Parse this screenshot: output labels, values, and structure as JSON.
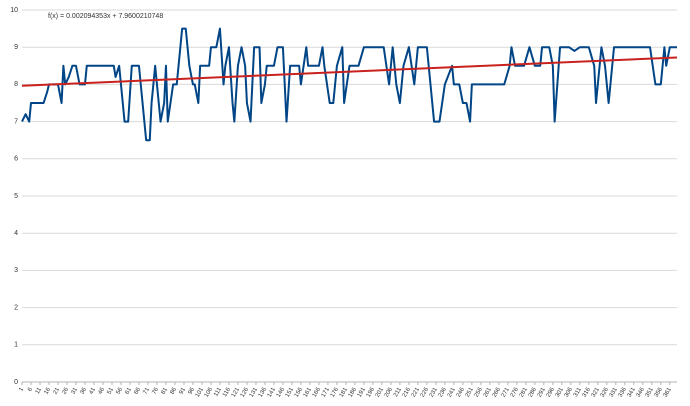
{
  "chart_data": {
    "type": "line",
    "annotation": "f(x) = 0.002094353x + 7.9600210748",
    "xlim": [
      1,
      365
    ],
    "ylim": [
      0,
      10
    ],
    "yticks": [
      0,
      1,
      2,
      3,
      4,
      5,
      6,
      7,
      8,
      9,
      10
    ],
    "xticks": [
      1,
      6,
      11,
      16,
      21,
      26,
      31,
      36,
      41,
      46,
      51,
      56,
      61,
      66,
      71,
      76,
      81,
      86,
      91,
      96,
      101,
      106,
      111,
      116,
      121,
      126,
      131,
      136,
      141,
      146,
      151,
      156,
      161,
      166,
      171,
      176,
      181,
      186,
      191,
      196,
      201,
      206,
      211,
      216,
      221,
      226,
      231,
      236,
      241,
      246,
      251,
      256,
      261,
      266,
      271,
      276,
      281,
      286,
      291,
      296,
      301,
      306,
      311,
      316,
      321,
      326,
      331,
      336,
      341,
      346,
      351,
      356,
      361
    ],
    "grid": true,
    "series": [
      {
        "color": "#004586",
        "x": [
          1,
          3,
          5,
          6,
          13,
          15,
          16,
          21,
          23,
          24,
          25,
          27,
          29,
          31,
          33,
          36,
          37,
          52,
          53,
          55,
          57,
          58,
          60,
          62,
          66,
          68,
          70,
          72,
          73,
          75,
          76,
          78,
          80,
          81,
          82,
          85,
          87,
          90,
          92,
          94,
          96,
          97,
          99,
          100,
          105,
          106,
          109,
          111,
          113,
          114,
          116,
          118,
          119,
          121,
          123,
          125,
          126,
          128,
          130,
          133,
          134,
          136,
          137,
          141,
          143,
          146,
          148,
          150,
          155,
          156,
          159,
          160,
          166,
          168,
          169,
          172,
          174,
          176,
          179,
          180,
          183,
          188,
          191,
          202,
          205,
          207,
          209,
          211,
          213,
          216,
          219,
          221,
          226,
          228,
          230,
          233,
          236,
          240,
          241,
          244,
          246,
          248,
          250,
          251,
          269,
          272,
          273,
          275,
          280,
          283,
          286,
          289,
          290,
          294,
          296,
          297,
          300,
          305,
          308,
          311,
          316,
          319,
          320,
          323,
          325,
          327,
          330,
          350,
          353,
          356,
          358,
          359,
          361,
          365
        ],
        "values": [
          7,
          7.2,
          7,
          7.5,
          7.5,
          7.8,
          8,
          8,
          7.5,
          8.5,
          8,
          8.2,
          8.5,
          8.5,
          8,
          8,
          8.5,
          8.5,
          8.2,
          8.5,
          7.5,
          7,
          7,
          8.5,
          8.5,
          7.5,
          6.5,
          6.5,
          7.5,
          8.5,
          8,
          7,
          7.5,
          8.5,
          7,
          8,
          8,
          9.5,
          9.5,
          8.5,
          8,
          8,
          7.5,
          8.5,
          8.5,
          9,
          9,
          9.5,
          8,
          8.5,
          9,
          7.5,
          7,
          8.5,
          9,
          8.5,
          7.5,
          7,
          9,
          9,
          7.5,
          8,
          8.5,
          8.5,
          9,
          9,
          7,
          8.5,
          8.5,
          8,
          9,
          8.5,
          8.5,
          9,
          8.5,
          7.5,
          7.5,
          8.5,
          9,
          7.5,
          8.5,
          8.5,
          9,
          9,
          8,
          9,
          8,
          7.5,
          8.5,
          9,
          8,
          9,
          9,
          8,
          7,
          7,
          8,
          8.5,
          8,
          8,
          7.5,
          7.5,
          7,
          8,
          8,
          8.5,
          9,
          8.5,
          8.5,
          9,
          8.5,
          8.5,
          9,
          9,
          8.5,
          7,
          9,
          9,
          8.9,
          9,
          9,
          8.5,
          7.5,
          9,
          8.5,
          7.5,
          9,
          9,
          8,
          8,
          9,
          8.5,
          9,
          9
        ]
      },
      {
        "color": "#c9211e",
        "x": [
          1,
          365
        ],
        "values": [
          7.962,
          8.724
        ]
      }
    ]
  }
}
